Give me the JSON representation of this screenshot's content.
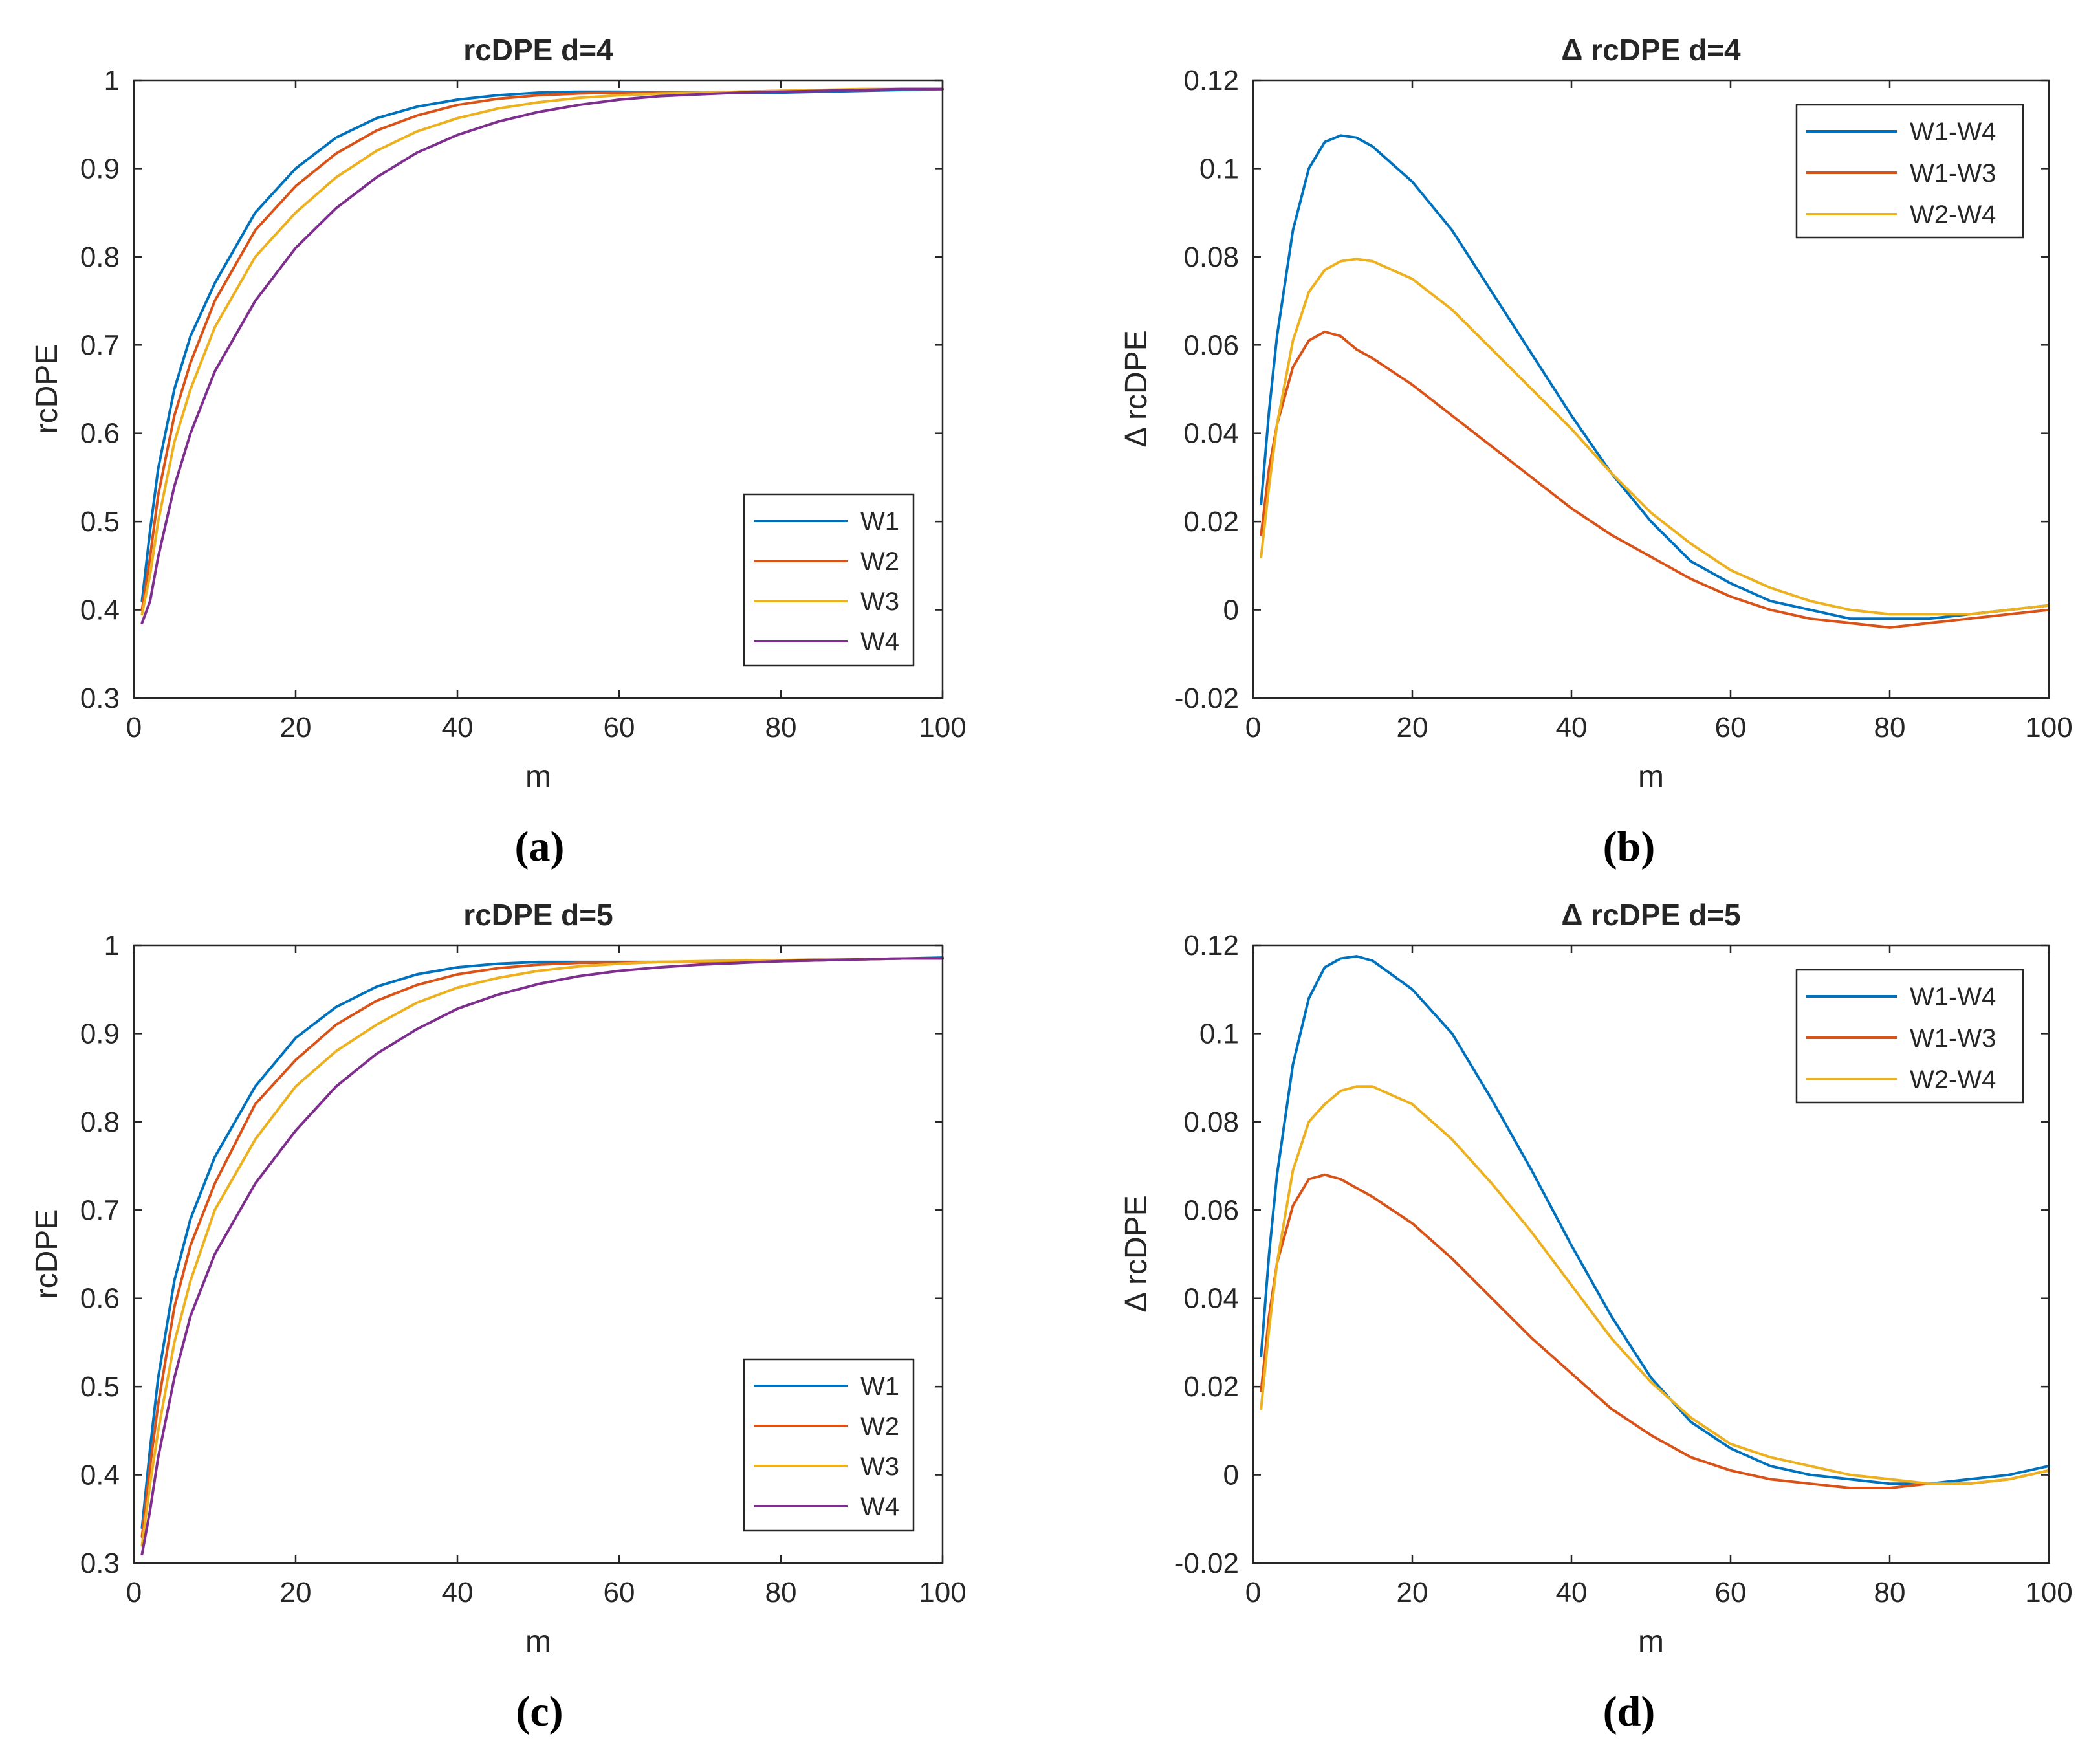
{
  "colors": {
    "blue": "#0072BD",
    "orange": "#D95319",
    "yellow": "#EDB120",
    "purple": "#7E2F8E"
  },
  "chart_data": [
    {
      "type": "line",
      "caption": "(a)",
      "title": "rcDPE d=4",
      "xlabel": "m",
      "ylabel": "rcDPE",
      "xlim": [
        0,
        100
      ],
      "ylim": [
        0.3,
        1
      ],
      "xticks": [
        0,
        20,
        40,
        60,
        80,
        100
      ],
      "xtick_labels": [
        "0",
        "20",
        "40",
        "60",
        "80",
        "100"
      ],
      "yticks": [
        0.3,
        0.4,
        0.5,
        0.6,
        0.7,
        0.8,
        0.9,
        1
      ],
      "ytick_labels": [
        "0.3",
        "0.4",
        "0.5",
        "0.6",
        "0.7",
        "0.8",
        "0.9",
        "1"
      ],
      "legend_position": "bottom-right",
      "x": [
        1,
        2,
        3,
        5,
        7,
        10,
        15,
        20,
        25,
        30,
        35,
        40,
        45,
        50,
        55,
        60,
        65,
        70,
        75,
        80,
        85,
        90,
        95,
        100
      ],
      "series": [
        {
          "name": "W1",
          "color": "#0072BD",
          "values": [
            0.41,
            0.49,
            0.56,
            0.65,
            0.71,
            0.77,
            0.85,
            0.9,
            0.935,
            0.957,
            0.97,
            0.978,
            0.983,
            0.986,
            0.987,
            0.987,
            0.986,
            0.986,
            0.986,
            0.986,
            0.987,
            0.988,
            0.989,
            0.99
          ]
        },
        {
          "name": "W2",
          "color": "#D95319",
          "values": [
            0.4,
            0.46,
            0.53,
            0.62,
            0.68,
            0.75,
            0.83,
            0.88,
            0.917,
            0.943,
            0.96,
            0.972,
            0.979,
            0.983,
            0.985,
            0.986,
            0.986,
            0.986,
            0.987,
            0.988,
            0.988,
            0.989,
            0.99,
            0.99
          ]
        },
        {
          "name": "W3",
          "color": "#EDB120",
          "values": [
            0.395,
            0.44,
            0.5,
            0.59,
            0.65,
            0.72,
            0.8,
            0.85,
            0.89,
            0.92,
            0.942,
            0.957,
            0.968,
            0.975,
            0.98,
            0.983,
            0.985,
            0.986,
            0.987,
            0.988,
            0.989,
            0.99,
            0.99,
            0.99
          ]
        },
        {
          "name": "W4",
          "color": "#7E2F8E",
          "values": [
            0.385,
            0.41,
            0.46,
            0.54,
            0.6,
            0.67,
            0.75,
            0.81,
            0.855,
            0.89,
            0.918,
            0.938,
            0.953,
            0.964,
            0.972,
            0.978,
            0.982,
            0.984,
            0.986,
            0.987,
            0.988,
            0.989,
            0.99,
            0.99
          ]
        }
      ]
    },
    {
      "type": "line",
      "caption": "(b)",
      "title": "Δ rcDPE d=4",
      "xlabel": "m",
      "ylabel": "Δ rcDPE",
      "xlim": [
        0,
        100
      ],
      "ylim": [
        -0.02,
        0.12
      ],
      "xticks": [
        0,
        20,
        40,
        60,
        80,
        100
      ],
      "xtick_labels": [
        "0",
        "20",
        "40",
        "60",
        "80",
        "100"
      ],
      "yticks": [
        -0.02,
        0,
        0.02,
        0.04,
        0.06,
        0.08,
        0.1,
        0.12
      ],
      "ytick_labels": [
        "-0.02",
        "0",
        "0.02",
        "0.04",
        "0.06",
        "0.08",
        "0.1",
        "0.12"
      ],
      "legend_position": "top-right",
      "x": [
        1,
        2,
        3,
        5,
        7,
        9,
        11,
        13,
        15,
        20,
        25,
        30,
        35,
        40,
        45,
        50,
        55,
        60,
        65,
        70,
        75,
        80,
        85,
        90,
        95,
        100
      ],
      "series": [
        {
          "name": "W1-W4",
          "color": "#0072BD",
          "values": [
            0.024,
            0.045,
            0.062,
            0.086,
            0.1,
            0.106,
            0.1075,
            0.107,
            0.105,
            0.097,
            0.086,
            0.072,
            0.058,
            0.044,
            0.031,
            0.02,
            0.011,
            0.006,
            0.002,
            0.0,
            -0.002,
            -0.002,
            -0.002,
            -0.001,
            0.0,
            0.001
          ]
        },
        {
          "name": "W1-W3",
          "color": "#D95319",
          "values": [
            0.017,
            0.032,
            0.042,
            0.055,
            0.061,
            0.063,
            0.062,
            0.059,
            0.057,
            0.051,
            0.044,
            0.037,
            0.03,
            0.023,
            0.017,
            0.012,
            0.007,
            0.003,
            0.0,
            -0.002,
            -0.003,
            -0.004,
            -0.003,
            -0.002,
            -0.001,
            0.0
          ]
        },
        {
          "name": "W2-W4",
          "color": "#EDB120",
          "values": [
            0.012,
            0.028,
            0.042,
            0.061,
            0.072,
            0.077,
            0.079,
            0.0795,
            0.079,
            0.075,
            0.068,
            0.059,
            0.05,
            0.041,
            0.031,
            0.022,
            0.015,
            0.009,
            0.005,
            0.002,
            0.0,
            -0.001,
            -0.001,
            -0.001,
            0.0,
            0.001
          ]
        }
      ]
    },
    {
      "type": "line",
      "caption": "(c)",
      "title": "rcDPE d=5",
      "xlabel": "m",
      "ylabel": "rcDPE",
      "xlim": [
        0,
        100
      ],
      "ylim": [
        0.3,
        1
      ],
      "xticks": [
        0,
        20,
        40,
        60,
        80,
        100
      ],
      "xtick_labels": [
        "0",
        "20",
        "40",
        "60",
        "80",
        "100"
      ],
      "yticks": [
        0.3,
        0.4,
        0.5,
        0.6,
        0.7,
        0.8,
        0.9,
        1
      ],
      "ytick_labels": [
        "0.3",
        "0.4",
        "0.5",
        "0.6",
        "0.7",
        "0.8",
        "0.9",
        "1"
      ],
      "legend_position": "bottom-right",
      "x": [
        1,
        2,
        3,
        5,
        7,
        10,
        15,
        20,
        25,
        30,
        35,
        40,
        45,
        50,
        55,
        60,
        65,
        70,
        75,
        80,
        85,
        90,
        95,
        100
      ],
      "series": [
        {
          "name": "W1",
          "color": "#0072BD",
          "values": [
            0.34,
            0.43,
            0.51,
            0.62,
            0.69,
            0.76,
            0.84,
            0.895,
            0.93,
            0.953,
            0.967,
            0.975,
            0.979,
            0.981,
            0.981,
            0.981,
            0.981,
            0.981,
            0.981,
            0.982,
            0.983,
            0.984,
            0.985,
            0.986
          ]
        },
        {
          "name": "W2",
          "color": "#D95319",
          "values": [
            0.33,
            0.41,
            0.48,
            0.59,
            0.66,
            0.73,
            0.82,
            0.87,
            0.91,
            0.937,
            0.955,
            0.967,
            0.974,
            0.978,
            0.98,
            0.98,
            0.981,
            0.981,
            0.982,
            0.982,
            0.983,
            0.984,
            0.985,
            0.985
          ]
        },
        {
          "name": "W3",
          "color": "#EDB120",
          "values": [
            0.32,
            0.39,
            0.45,
            0.55,
            0.62,
            0.7,
            0.78,
            0.84,
            0.88,
            0.91,
            0.935,
            0.952,
            0.963,
            0.971,
            0.976,
            0.979,
            0.981,
            0.982,
            0.983,
            0.983,
            0.984,
            0.984,
            0.985,
            0.985
          ]
        },
        {
          "name": "W4",
          "color": "#7E2F8E",
          "values": [
            0.31,
            0.36,
            0.42,
            0.51,
            0.58,
            0.65,
            0.73,
            0.79,
            0.84,
            0.877,
            0.905,
            0.928,
            0.944,
            0.956,
            0.965,
            0.971,
            0.975,
            0.978,
            0.98,
            0.982,
            0.983,
            0.984,
            0.985,
            0.985
          ]
        }
      ]
    },
    {
      "type": "line",
      "caption": "(d)",
      "title": "Δ rcDPE d=5",
      "xlabel": "m",
      "ylabel": "Δ rcDPE",
      "xlim": [
        0,
        100
      ],
      "ylim": [
        -0.02,
        0.12
      ],
      "xticks": [
        0,
        20,
        40,
        60,
        80,
        100
      ],
      "xtick_labels": [
        "0",
        "20",
        "40",
        "60",
        "80",
        "100"
      ],
      "yticks": [
        -0.02,
        0,
        0.02,
        0.04,
        0.06,
        0.08,
        0.1,
        0.12
      ],
      "ytick_labels": [
        "-0.02",
        "0",
        "0.02",
        "0.04",
        "0.06",
        "0.08",
        "0.1",
        "0.12"
      ],
      "legend_position": "top-right",
      "x": [
        1,
        2,
        3,
        5,
        7,
        9,
        11,
        13,
        15,
        20,
        25,
        30,
        35,
        40,
        45,
        50,
        55,
        60,
        65,
        70,
        75,
        80,
        85,
        90,
        95,
        100
      ],
      "series": [
        {
          "name": "W1-W4",
          "color": "#0072BD",
          "values": [
            0.027,
            0.05,
            0.068,
            0.093,
            0.108,
            0.115,
            0.117,
            0.1175,
            0.1165,
            0.11,
            0.1,
            0.085,
            0.069,
            0.052,
            0.036,
            0.022,
            0.012,
            0.006,
            0.002,
            0.0,
            -0.001,
            -0.002,
            -0.002,
            -0.001,
            0.0,
            0.002
          ]
        },
        {
          "name": "W1-W3",
          "color": "#D95319",
          "values": [
            0.019,
            0.036,
            0.048,
            0.061,
            0.067,
            0.068,
            0.067,
            0.065,
            0.063,
            0.057,
            0.049,
            0.04,
            0.031,
            0.023,
            0.015,
            0.009,
            0.004,
            0.001,
            -0.001,
            -0.002,
            -0.003,
            -0.003,
            -0.002,
            -0.002,
            -0.001,
            0.001
          ]
        },
        {
          "name": "W2-W4",
          "color": "#EDB120",
          "values": [
            0.015,
            0.033,
            0.048,
            0.069,
            0.08,
            0.084,
            0.087,
            0.088,
            0.088,
            0.084,
            0.076,
            0.066,
            0.055,
            0.043,
            0.031,
            0.021,
            0.013,
            0.007,
            0.004,
            0.002,
            0.0,
            -0.001,
            -0.002,
            -0.002,
            -0.001,
            0.001
          ]
        }
      ]
    }
  ]
}
